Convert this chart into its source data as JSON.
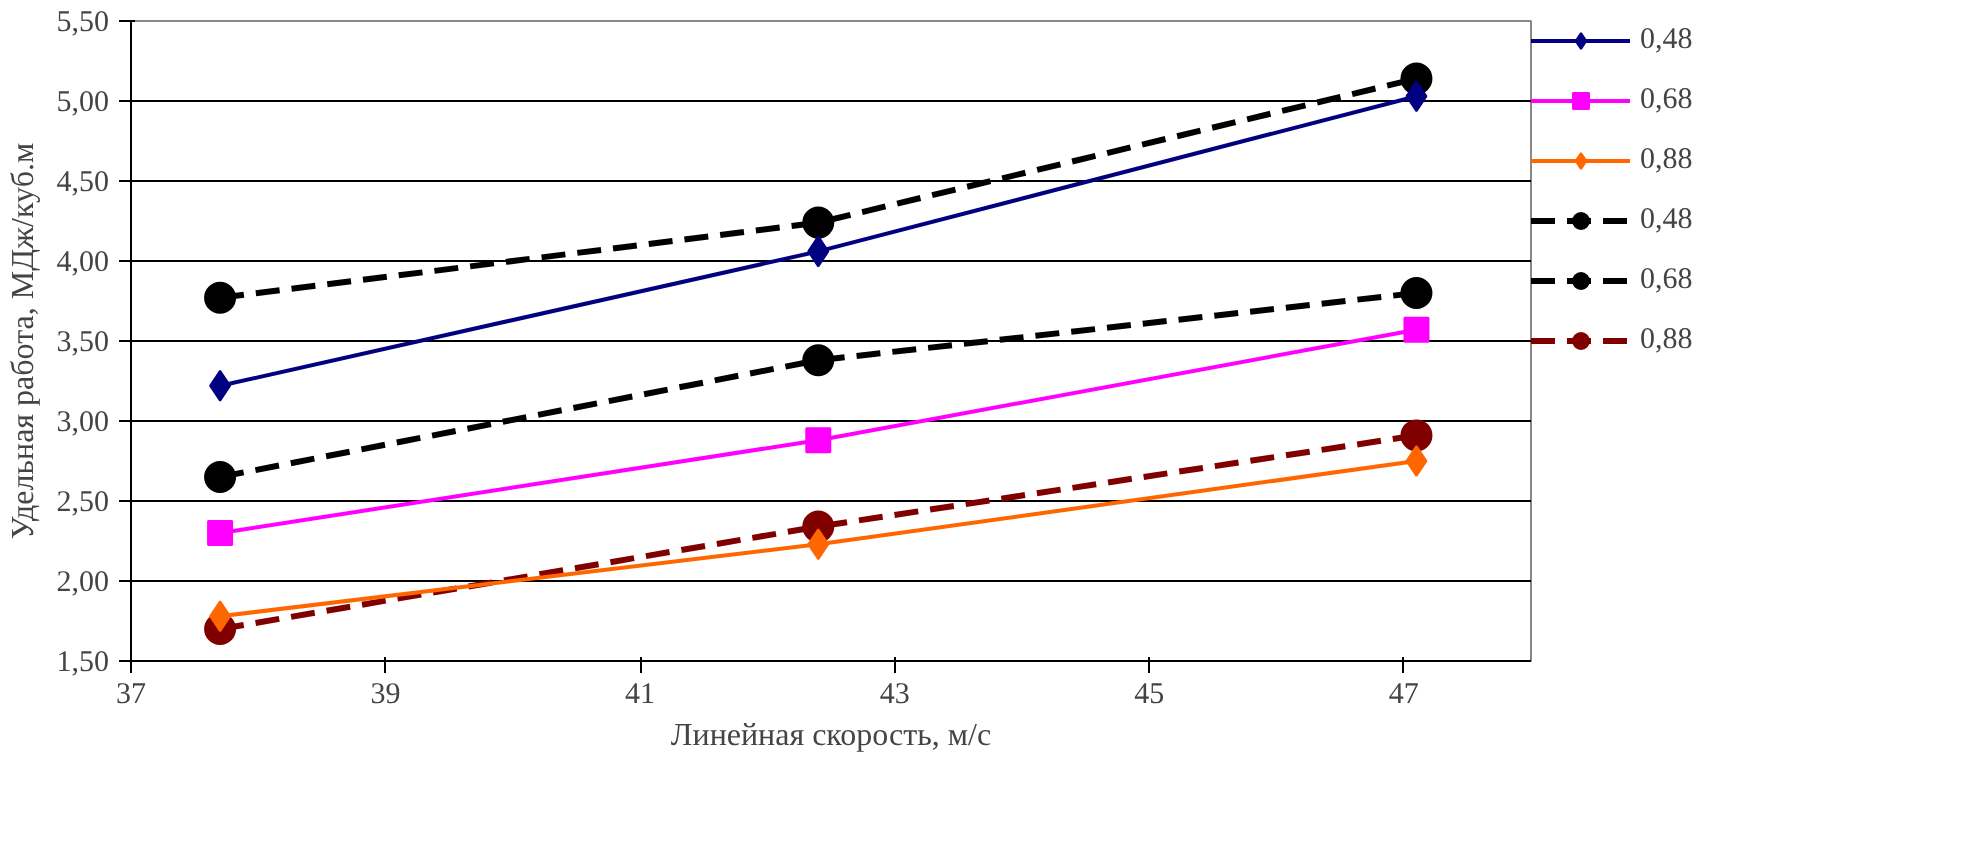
{
  "chart_data": {
    "type": "line",
    "xlabel": "Линейная скорость, м/с",
    "ylabel": "Удельная работа, МДж/куб.м",
    "x": [
      37.7,
      42.4,
      47.1
    ],
    "xlim": [
      37,
      48
    ],
    "xticks": [
      37,
      39,
      41,
      43,
      45,
      47
    ],
    "ylim": [
      1.5,
      5.5
    ],
    "yticks": [
      {
        "value": 1.5,
        "label": "1,50"
      },
      {
        "value": 2.0,
        "label": "2,00"
      },
      {
        "value": 2.5,
        "label": "2,50"
      },
      {
        "value": 3.0,
        "label": "3,00"
      },
      {
        "value": 3.5,
        "label": "3,50"
      },
      {
        "value": 4.0,
        "label": "4,00"
      },
      {
        "value": 4.5,
        "label": "4,50"
      },
      {
        "value": 5.0,
        "label": "5,00"
      },
      {
        "value": 5.5,
        "label": "5,50"
      }
    ],
    "grid": "y",
    "legend": "right",
    "series": [
      {
        "name": "0,48",
        "color": "#000080",
        "values": [
          3.22,
          4.06,
          5.03
        ],
        "marker": "diamond",
        "line_style": "solid"
      },
      {
        "name": "0,68",
        "color": "#ff00ff",
        "values": [
          2.3,
          2.88,
          3.57
        ],
        "marker": "square",
        "line_style": "solid"
      },
      {
        "name": "0,88",
        "color": "#ff6600",
        "values": [
          1.78,
          2.23,
          2.75
        ],
        "marker": "diamond",
        "line_style": "solid"
      },
      {
        "name": "0,48",
        "color": "#000000",
        "values": [
          3.77,
          4.24,
          5.14
        ],
        "marker": "circle",
        "line_style": "dashed"
      },
      {
        "name": "0,68",
        "color": "#000000",
        "values": [
          2.65,
          3.38,
          3.8
        ],
        "marker": "circle",
        "line_style": "dashed"
      },
      {
        "name": "0,88",
        "color": "#800000",
        "values": [
          1.7,
          2.34,
          2.91
        ],
        "marker": "circle",
        "line_style": "dashed"
      }
    ]
  }
}
